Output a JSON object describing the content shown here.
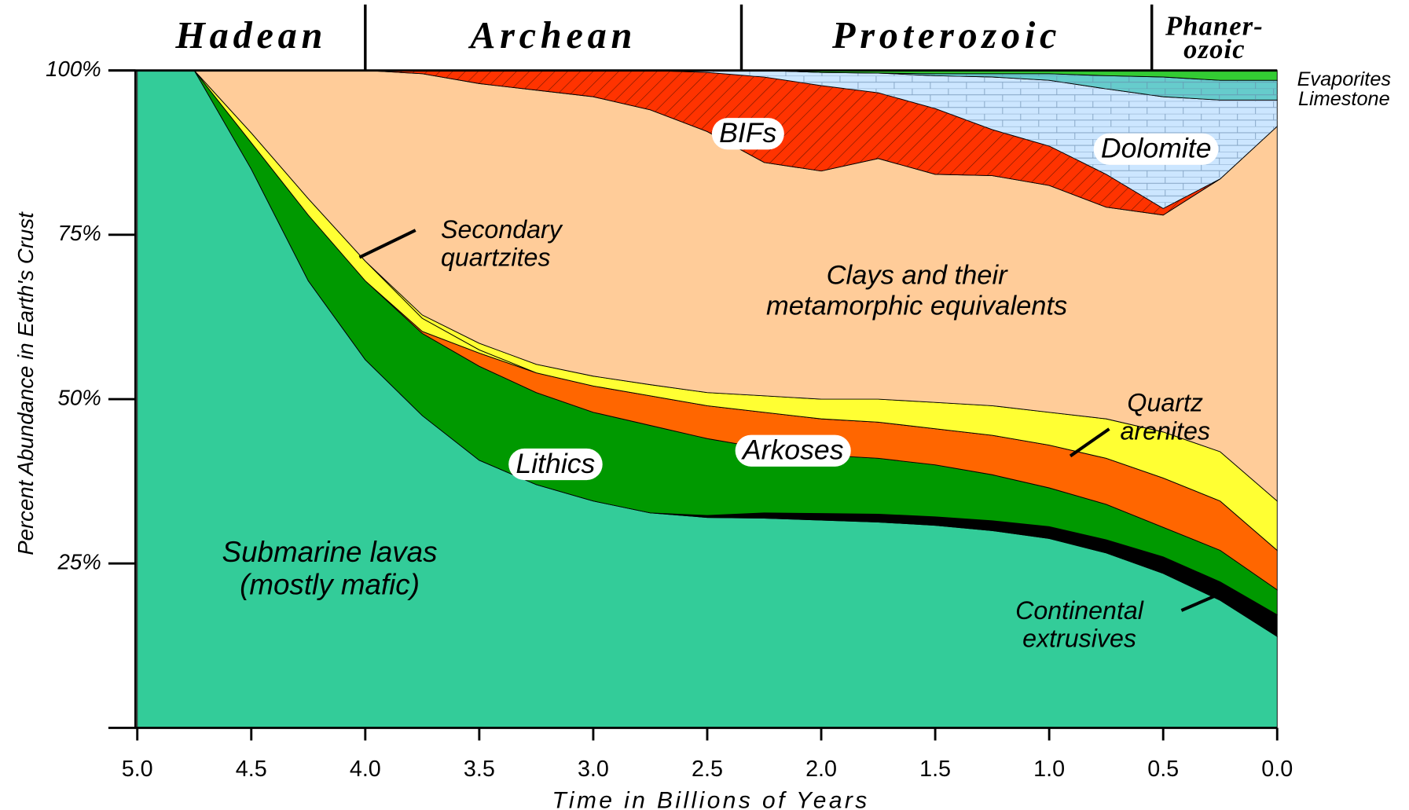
{
  "chart_data": {
    "type": "stacked-area",
    "ylabel": "Percent Abundance in Earth's Crust",
    "xlabel": "Time in Billions of Years",
    "x": [
      5,
      4.75,
      4.5,
      4.25,
      4,
      3.75,
      3.5,
      3.25,
      3,
      2.75,
      2.5,
      2.25,
      2,
      1.75,
      1.5,
      1.25,
      1,
      0.75,
      0.5,
      0.25,
      0
    ],
    "xlim": [
      5,
      0
    ],
    "ylim": [
      0,
      100
    ],
    "xticks": [
      {
        "value": 5,
        "label": "5.0"
      },
      {
        "value": 4.5,
        "label": "4.5"
      },
      {
        "value": 4,
        "label": "4.0"
      },
      {
        "value": 3.5,
        "label": "3.5"
      },
      {
        "value": 3,
        "label": "3.0"
      },
      {
        "value": 2.5,
        "label": "2.5"
      },
      {
        "value": 2,
        "label": "2.0"
      },
      {
        "value": 1.5,
        "label": "1.5"
      },
      {
        "value": 1,
        "label": "1.0"
      },
      {
        "value": 0.5,
        "label": "0.5"
      },
      {
        "value": 0,
        "label": "0.0"
      }
    ],
    "yticks": [
      {
        "value": 25,
        "label": "25%"
      },
      {
        "value": 50,
        "label": "50%"
      },
      {
        "value": 75,
        "label": "75%"
      },
      {
        "value": 100,
        "label": "100%"
      }
    ],
    "eras": [
      {
        "name": "Hadean",
        "start": 5,
        "end": 4
      },
      {
        "name": "Archean",
        "start": 4,
        "end": 2.35
      },
      {
        "name": "Proterozoic",
        "start": 2.35,
        "end": 0.55
      },
      {
        "name": "Phaner-\nozoic",
        "start": 0.55,
        "end": 0
      }
    ],
    "series": [
      {
        "name": "Submarine lavas\n(mostly mafic)",
        "color": "#33cc99",
        "values": [
          100,
          100,
          85,
          68,
          56,
          47.5,
          40.7,
          37,
          34.5,
          32.7,
          32,
          31.9,
          31.6,
          31.3,
          30.8,
          30,
          28.8,
          26.6,
          23.5,
          19.4,
          13.9
        ]
      },
      {
        "name": "Continental\nextrusives",
        "color": "#000000",
        "values": [
          0,
          0,
          0,
          0,
          0,
          0,
          0,
          0,
          0,
          0,
          0.3,
          0.8,
          1,
          1.2,
          1.3,
          1.5,
          1.8,
          2,
          2.5,
          2.8,
          3.3
        ]
      },
      {
        "name": "Lithics",
        "color": "#009900",
        "values": [
          0,
          0,
          4,
          10,
          12,
          12.5,
          14.3,
          14,
          13.5,
          13.3,
          11.7,
          9.8,
          8.9,
          8.5,
          7.9,
          7,
          5.9,
          5.4,
          4.5,
          4.8,
          3.8
        ]
      },
      {
        "name": "Arkoses",
        "color": "#ff6600",
        "values": [
          0,
          0,
          0,
          0,
          0,
          0.3,
          2,
          3,
          4,
          4.5,
          5,
          5.5,
          5.5,
          5.5,
          5.5,
          6,
          6.5,
          7,
          7.5,
          7.5,
          6
        ]
      },
      {
        "name": "Secondary\nquartzites",
        "color": "#ffff33",
        "values": [
          0,
          0,
          1.5,
          2.5,
          3,
          2,
          0.5,
          0,
          0,
          0,
          0,
          0,
          0,
          0,
          0,
          0,
          0,
          0,
          0,
          0,
          0
        ]
      },
      {
        "name": "Quartz\narenites",
        "color": "#ffff33",
        "values": [
          0,
          0,
          0,
          0,
          0,
          0.5,
          1,
          1.3,
          1.5,
          1.7,
          2,
          2.5,
          3,
          3.5,
          4,
          4.5,
          5,
          6,
          7,
          7.5,
          7.5
        ]
      },
      {
        "name": "Clays and their\nmetamorphic equivalents",
        "color": "#ffcc99",
        "values": [
          0,
          0,
          9.5,
          19.5,
          29,
          36.7,
          39.5,
          41.7,
          42.5,
          41.8,
          39.7,
          35.5,
          34.7,
          36.6,
          34.7,
          35,
          34.5,
          32.2,
          33,
          41.5,
          57
        ]
      },
      {
        "name": "BIFs",
        "color": "#ff3300",
        "values": [
          0,
          0,
          0,
          0,
          0,
          0.5,
          2,
          3,
          4,
          6,
          9,
          13,
          13,
          10,
          10,
          7,
          6,
          5,
          1,
          0,
          0
        ]
      },
      {
        "name": "Dolomite",
        "color": "#cce6ff",
        "values": [
          0,
          0,
          0,
          0,
          0,
          0,
          0,
          0,
          0,
          0,
          0.3,
          1,
          2,
          3,
          5,
          8,
          10,
          13,
          17,
          12,
          4
        ]
      },
      {
        "name": "Limestone",
        "color": "#66cccc",
        "values": [
          0,
          0,
          0,
          0,
          0,
          0,
          0,
          0,
          0,
          0,
          0,
          0,
          0,
          0,
          0.3,
          0.5,
          1,
          2,
          3,
          3,
          3
        ]
      },
      {
        "name": "Evaporites",
        "color": "#33cc33",
        "values": [
          0,
          0,
          0,
          0,
          0,
          0,
          0,
          0,
          0,
          0,
          0,
          0,
          0.3,
          0.4,
          0.5,
          0.5,
          0.5,
          0.8,
          1,
          1.5,
          1.5
        ]
      }
    ]
  }
}
